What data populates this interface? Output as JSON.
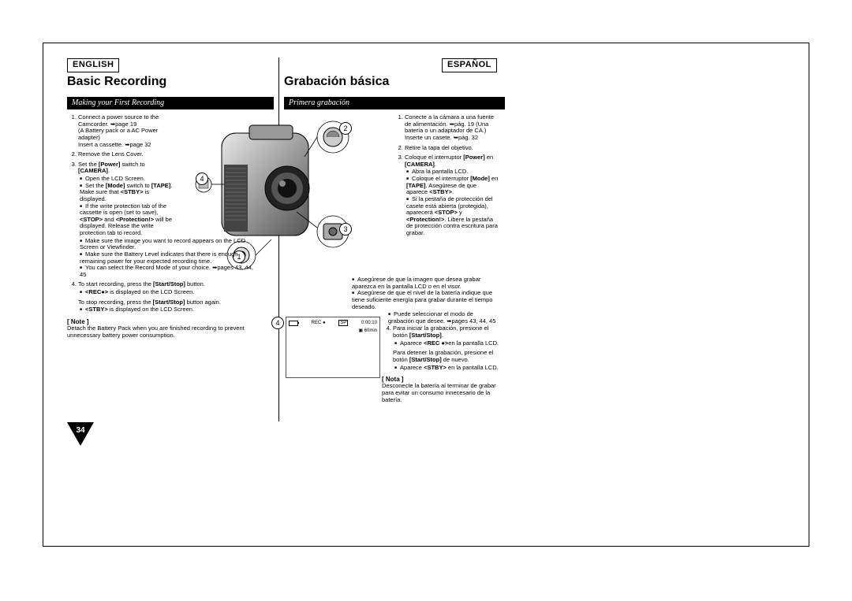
{
  "page_number": "34",
  "lang": {
    "left": "ENGLISH",
    "right": "ESPAÑOL"
  },
  "title": {
    "left": "Basic Recording",
    "right": "Grabación básica"
  },
  "subtitle": {
    "left": "Making your First Recording",
    "right": "Primera grabación"
  },
  "callouts": {
    "c1": "1",
    "c2": "2",
    "c3": "3",
    "c4a": "4",
    "c4b": "4"
  },
  "lcd": {
    "rec": "REC ●",
    "sp": "SP",
    "time": "0:00:10",
    "remain": "60min",
    "tape_icon": "▣"
  },
  "english": {
    "step1": "Connect a power source to the Camcorder. ➥page 19\n(A Battery pack or a AC Power adapter)\nInsert a cassette. ➥page 32",
    "step2": "Remove the Lens Cover.",
    "step3_intro": "Set the [Power] switch to [CAMERA].",
    "step3_b1": "Open the LCD Screen.",
    "step3_b2_a": "Set the [Mode] switch to [TAPE].",
    "step3_b2_b": "Make sure that <STBY> is displayed.",
    "step3_b3_a": "If the write protection tab of the cassette is open (set to save), <STOP> and <Protection!> will be displayed. Release the write protection tab to record.",
    "step3_b4": "Make sure the image you want to record appears on the LCD Screen or Viewfinder.",
    "step3_b5": "Make sure the Battery Level indicates that there is enough remaining power for your expected recording time.",
    "step3_b6": "You can select the Record Mode of your choice. ➥pages 43, 44, 45",
    "step4_intro": "To start recording, press the [Start/Stop] button.",
    "step4_b1": "<REC●> is displayed on the LCD Screen.",
    "step4_stop": "To stop recording, press the [Start/Stop] button again.",
    "step4_b2": "<STBY> is displayed on the LCD Screen.",
    "note_head": "[ Note ]",
    "note_body": "Detach the Battery Pack when you are finished recording to prevent unnecessary battery power consumption."
  },
  "spanish": {
    "step1": "Conecte a la cámara a una fuente de alimentación. ➥pág. 19 (Una batería o un adaptador de CA.)\nInserte un casete. ➥pág. 32",
    "step2": "Retire la tapa del objetivo.",
    "step3_intro": "Coloque el interruptor [Power] en [CAMERA].",
    "step3_b1": "Abra la pantalla LCD.",
    "step3_b2_a": "Coloque el interruptor [Mode] en [TAPE].",
    "step3_b2_b": "Asegúrese de que aparece <STBY>.",
    "step3_b3_a": "Si la pestaña de protección del casete está abierta (protegida), aparecerá <STOP> y <Protection!>. Libere la pestaña de protección contra escritura para grabar.",
    "step3_b4": "Asegúrese de que la imagen que desea grabar aparezca en la pantalla LCD o en el visor.",
    "step3_b5": "Asegúrese de que el nivel de la batería indique que tiene suficiente energía para grabar durante el tiempo deseado.",
    "step3_b6": "Puede seleccionar el modo de grabación que desee. ➥pages 43, 44, 45",
    "step4_intro": "Para iniciar la grabación, presione el botón [Start/Stop].",
    "step4_b1": "Aparece <REC ●>en la pantalla LCD.",
    "step4_stop": "Para detener la grabación, presione el botón [Start/Stop] de nuevo.",
    "step4_b2": "Aparece <STBY> en la pantalla LCD.",
    "note_head": "[ Nota ]",
    "note_body": "Desconecte la batería al terminar de grabar para evitar un consumo innecesario de la batería."
  },
  "colors": {
    "header_bg": "#000000",
    "header_fg": "#ffffff",
    "text": "#000000",
    "page_bg": "#ffffff"
  }
}
